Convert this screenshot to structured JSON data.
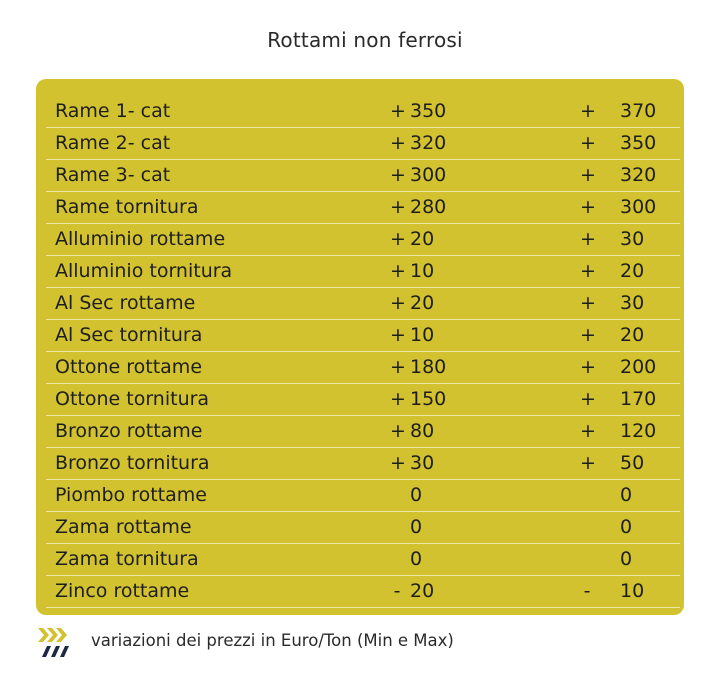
{
  "title": "Rottami non ferrosi",
  "colors": {
    "panel": "#d2c22f",
    "row_divider": "#eee8a8",
    "logo_dark": "#1c2940",
    "logo_accent": "#d2c22f"
  },
  "rows": [
    {
      "name": "Rame 1- cat",
      "min_sign": "+",
      "min": "350",
      "max_sign": "+",
      "max": "370"
    },
    {
      "name": "Rame 2- cat",
      "min_sign": "+",
      "min": "320",
      "max_sign": "+",
      "max": "350"
    },
    {
      "name": "Rame 3- cat",
      "min_sign": "+",
      "min": "300",
      "max_sign": "+",
      "max": "320"
    },
    {
      "name": "Rame tornitura",
      "min_sign": "+",
      "min": "280",
      "max_sign": "+",
      "max": "300"
    },
    {
      "name": "Alluminio rottame",
      "min_sign": "+",
      "min": "20",
      "max_sign": "+",
      "max": "30"
    },
    {
      "name": "Alluminio tornitura",
      "min_sign": "+",
      "min": "10",
      "max_sign": "+",
      "max": "20"
    },
    {
      "name": "Al Sec rottame",
      "min_sign": "+",
      "min": "20",
      "max_sign": "+",
      "max": "30"
    },
    {
      "name": "Al Sec tornitura",
      "min_sign": "+",
      "min": "10",
      "max_sign": "+",
      "max": "20"
    },
    {
      "name": "Ottone rottame",
      "min_sign": "+",
      "min": "180",
      "max_sign": "+",
      "max": "200"
    },
    {
      "name": "Ottone tornitura",
      "min_sign": "+",
      "min": "150",
      "max_sign": "+",
      "max": "170"
    },
    {
      "name": "Bronzo rottame",
      "min_sign": "+",
      "min": "80",
      "max_sign": "+",
      "max": "120"
    },
    {
      "name": "Bronzo tornitura",
      "min_sign": "+",
      "min": "30",
      "max_sign": "+",
      "max": "50"
    },
    {
      "name": "Piombo rottame",
      "min_sign": "",
      "min": "0",
      "max_sign": "",
      "max": "0"
    },
    {
      "name": "Zama rottame",
      "min_sign": "",
      "min": "0",
      "max_sign": "",
      "max": "0"
    },
    {
      "name": "Zama tornitura",
      "min_sign": "",
      "min": "0",
      "max_sign": "",
      "max": "0"
    },
    {
      "name": "Zinco rottame",
      "min_sign": "-",
      "min": "20",
      "max_sign": "-",
      "max": "10"
    }
  ],
  "footer": {
    "logo_icon": "chevrons-logo-icon",
    "note": "variazioni dei prezzi in Euro/Ton (Min e Max)"
  }
}
